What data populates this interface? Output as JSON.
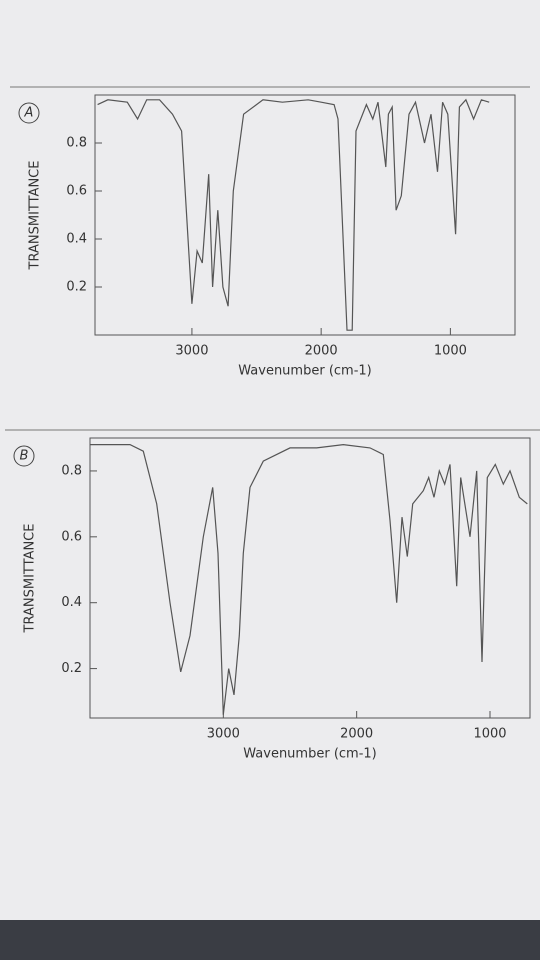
{
  "chart_data": [
    {
      "type": "line",
      "label": "A",
      "ylabel": "TRANSMITTANCE",
      "xlabel": "Wavenumber (cm-1)",
      "color": "#555555",
      "xlim": [
        3750,
        500
      ],
      "xticks": [
        3000,
        2000,
        1000
      ],
      "ylim": [
        0,
        1
      ],
      "yticks": [
        0.2,
        0.4,
        0.6,
        0.8
      ],
      "x": [
        3730,
        3650,
        3500,
        3420,
        3350,
        3250,
        3150,
        3080,
        3000,
        2960,
        2920,
        2870,
        2840,
        2800,
        2760,
        2720,
        2680,
        2600,
        2450,
        2300,
        2100,
        2000,
        1900,
        1870,
        1800,
        1760,
        1730,
        1650,
        1600,
        1560,
        1500,
        1480,
        1450,
        1420,
        1380,
        1320,
        1270,
        1200,
        1150,
        1100,
        1060,
        1020,
        960,
        930,
        880,
        820,
        760,
        700
      ],
      "values": [
        0.96,
        0.98,
        0.97,
        0.9,
        0.98,
        0.98,
        0.92,
        0.85,
        0.13,
        0.35,
        0.3,
        0.67,
        0.2,
        0.52,
        0.2,
        0.12,
        0.6,
        0.92,
        0.98,
        0.97,
        0.98,
        0.97,
        0.96,
        0.9,
        0.02,
        0.02,
        0.85,
        0.96,
        0.9,
        0.97,
        0.7,
        0.92,
        0.95,
        0.52,
        0.58,
        0.92,
        0.97,
        0.8,
        0.92,
        0.68,
        0.97,
        0.92,
        0.42,
        0.95,
        0.98,
        0.9,
        0.98,
        0.97
      ]
    },
    {
      "type": "line",
      "label": "B",
      "ylabel": "TRANSMITTANCE",
      "xlabel": "Wavenumber (cm-1)",
      "color": "#555555",
      "xlim": [
        4000,
        700
      ],
      "xticks": [
        3000,
        2000,
        1000
      ],
      "ylim": [
        0.05,
        0.9
      ],
      "yticks": [
        0.2,
        0.4,
        0.6,
        0.8
      ],
      "x": [
        4000,
        3700,
        3600,
        3500,
        3400,
        3320,
        3250,
        3150,
        3080,
        3040,
        3000,
        2960,
        2920,
        2880,
        2850,
        2800,
        2700,
        2500,
        2300,
        2100,
        1900,
        1800,
        1750,
        1700,
        1660,
        1620,
        1580,
        1500,
        1460,
        1420,
        1380,
        1340,
        1300,
        1250,
        1220,
        1150,
        1100,
        1060,
        1020,
        960,
        900,
        850,
        780,
        720
      ],
      "values": [
        0.88,
        0.88,
        0.86,
        0.7,
        0.4,
        0.19,
        0.3,
        0.6,
        0.75,
        0.55,
        0.06,
        0.2,
        0.12,
        0.3,
        0.55,
        0.75,
        0.83,
        0.87,
        0.87,
        0.88,
        0.87,
        0.85,
        0.65,
        0.4,
        0.66,
        0.54,
        0.7,
        0.74,
        0.78,
        0.72,
        0.8,
        0.76,
        0.82,
        0.45,
        0.78,
        0.6,
        0.8,
        0.22,
        0.78,
        0.82,
        0.76,
        0.8,
        0.72,
        0.7
      ]
    }
  ]
}
